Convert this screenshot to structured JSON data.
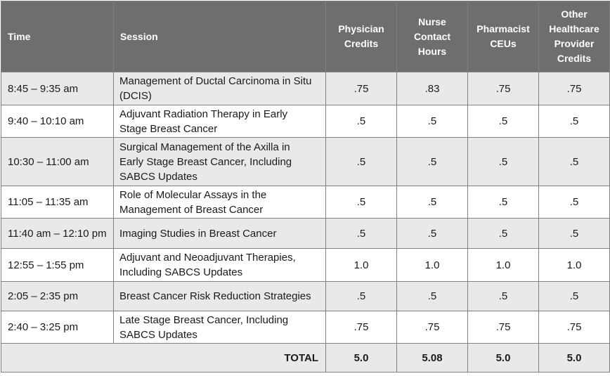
{
  "table": {
    "headers": {
      "time": "Time",
      "session": "Session",
      "physician": [
        "Physician",
        "Credits"
      ],
      "nurse": [
        "Nurse",
        "Contact",
        "Hours"
      ],
      "pharmacist": [
        "Pharmacist",
        "CEUs"
      ],
      "other": [
        "Other",
        "Healthcare",
        "Provider",
        "Credits"
      ]
    },
    "rows": [
      {
        "time": "8:45 – 9:35 am",
        "session": [
          "Management of Ductal Carcinoma in Situ",
          "(DCIS)"
        ],
        "physician": ".75",
        "nurse": ".83",
        "pharmacist": ".75",
        "other": ".75"
      },
      {
        "time": "9:40 – 10:10 am",
        "session": [
          "Adjuvant Radiation Therapy in Early",
          "Stage Breast Cancer"
        ],
        "physician": ".5",
        "nurse": ".5",
        "pharmacist": ".5",
        "other": ".5"
      },
      {
        "time": "10:30 – 11:00 am",
        "session": [
          "Surgical Management of the Axilla in",
          "Early Stage Breast Cancer, Including",
          "SABCS Updates"
        ],
        "physician": ".5",
        "nurse": ".5",
        "pharmacist": ".5",
        "other": ".5"
      },
      {
        "time": "11:05 – 11:35 am",
        "session": [
          "Role of Molecular Assays in the",
          "Management of Breast Cancer"
        ],
        "physician": ".5",
        "nurse": ".5",
        "pharmacist": ".5",
        "other": ".5"
      },
      {
        "time": "11:40 am – 12:10 pm",
        "session": [
          "Imaging Studies in Breast Cancer"
        ],
        "physician": ".5",
        "nurse": ".5",
        "pharmacist": ".5",
        "other": ".5"
      },
      {
        "time": "12:55 – 1:55 pm",
        "session": [
          "Adjuvant and Neoadjuvant Therapies,",
          "Including SABCS Updates"
        ],
        "physician": "1.0",
        "nurse": "1.0",
        "pharmacist": "1.0",
        "other": "1.0"
      },
      {
        "time": "2:05 – 2:35 pm",
        "session": [
          "Breast Cancer Risk Reduction Strategies"
        ],
        "physician": ".5",
        "nurse": ".5",
        "pharmacist": ".5",
        "other": ".5"
      },
      {
        "time": "2:40 – 3:25 pm",
        "session": [
          "Late Stage Breast Cancer, Including",
          "SABCS Updates"
        ],
        "physician": ".75",
        "nurse": ".75",
        "pharmacist": ".75",
        "other": ".75"
      }
    ],
    "total": {
      "label": "TOTAL",
      "physician": "5.0",
      "nurse": "5.08",
      "pharmacist": "5.0",
      "other": "5.0"
    }
  }
}
